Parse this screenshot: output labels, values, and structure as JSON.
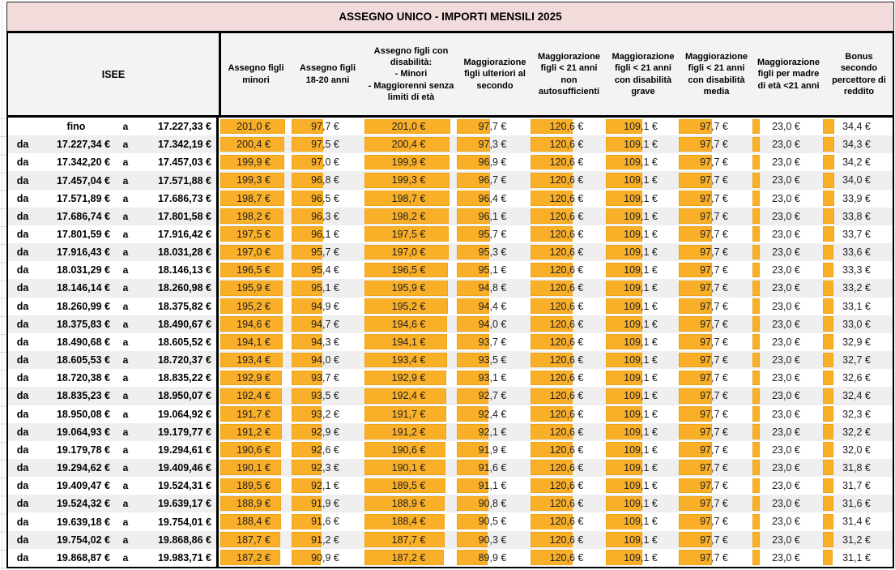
{
  "title": "ASSEGNO UNICO - IMPORTI MENSILI 2025",
  "colors": {
    "data_bar": "#FAAF28",
    "data_bar_border": "#EFA413",
    "title_bg": "#F2DCDB",
    "header_bg": "#F3F3F3",
    "row_band_bg": "#EFEFEF",
    "border": "#000000"
  },
  "table": {
    "isee_header": "ISEE",
    "range_prefix": "da",
    "range_separator": "a",
    "first_row_label": "fino",
    "currency_suffix": " €",
    "bar_max": 201.0,
    "columns": [
      "Assegno figli minori",
      "Assegno figli 18-20 anni",
      "Assegno figli con disabilità:\n- Minori\n- Maggiorenni senza limiti di età",
      "Maggiorazione figli ulteriori al secondo",
      "Maggiorazione figli < 21 anni non autosufficienti",
      "Maggiorazione figli < 21 anni con disabilità grave",
      "Maggiorazione figli < 21 anni con disabilità media",
      "Maggiorazione figli per madre di età <21 anni",
      "Bonus secondo percettore di reddito"
    ],
    "rows": [
      [
        null,
        "17.227,33",
        [
          "201,0",
          "97,7",
          "201,0",
          "97,7",
          "120,6",
          "109,1",
          "97,7",
          "23,0",
          "34,4"
        ]
      ],
      [
        "17.227,34",
        "17.342,19",
        [
          "200,4",
          "97,5",
          "200,4",
          "97,3",
          "120,6",
          "109,1",
          "97,7",
          "23,0",
          "34,3"
        ]
      ],
      [
        "17.342,20",
        "17.457,03",
        [
          "199,9",
          "97,0",
          "199,9",
          "96,9",
          "120,6",
          "109,1",
          "97,7",
          "23,0",
          "34,2"
        ]
      ],
      [
        "17.457,04",
        "17.571,88",
        [
          "199,3",
          "96,8",
          "199,3",
          "96,7",
          "120,6",
          "109,1",
          "97,7",
          "23,0",
          "34,0"
        ]
      ],
      [
        "17.571,89",
        "17.686,73",
        [
          "198,7",
          "96,5",
          "198,7",
          "96,4",
          "120,6",
          "109,1",
          "97,7",
          "23,0",
          "33,9"
        ]
      ],
      [
        "17.686,74",
        "17.801,58",
        [
          "198,2",
          "96,3",
          "198,2",
          "96,1",
          "120,6",
          "109,1",
          "97,7",
          "23,0",
          "33,8"
        ]
      ],
      [
        "17.801,59",
        "17.916,42",
        [
          "197,5",
          "96,1",
          "197,5",
          "95,7",
          "120,6",
          "109,1",
          "97,7",
          "23,0",
          "33,7"
        ]
      ],
      [
        "17.916,43",
        "18.031,28",
        [
          "197,0",
          "95,7",
          "197,0",
          "95,3",
          "120,6",
          "109,1",
          "97,7",
          "23,0",
          "33,6"
        ]
      ],
      [
        "18.031,29",
        "18.146,13",
        [
          "196,5",
          "95,4",
          "196,5",
          "95,1",
          "120,6",
          "109,1",
          "97,7",
          "23,0",
          "33,3"
        ]
      ],
      [
        "18.146,14",
        "18.260,98",
        [
          "195,9",
          "95,1",
          "195,9",
          "94,8",
          "120,6",
          "109,1",
          "97,7",
          "23,0",
          "33,2"
        ]
      ],
      [
        "18.260,99",
        "18.375,82",
        [
          "195,2",
          "94,9",
          "195,2",
          "94,4",
          "120,6",
          "109,1",
          "97,7",
          "23,0",
          "33,1"
        ]
      ],
      [
        "18.375,83",
        "18.490,67",
        [
          "194,6",
          "94,7",
          "194,6",
          "94,0",
          "120,6",
          "109,1",
          "97,7",
          "23,0",
          "33,0"
        ]
      ],
      [
        "18.490,68",
        "18.605,52",
        [
          "194,1",
          "94,3",
          "194,1",
          "93,7",
          "120,6",
          "109,1",
          "97,7",
          "23,0",
          "32,9"
        ]
      ],
      [
        "18.605,53",
        "18.720,37",
        [
          "193,4",
          "94,0",
          "193,4",
          "93,5",
          "120,6",
          "109,1",
          "97,7",
          "23,0",
          "32,7"
        ]
      ],
      [
        "18.720,38",
        "18.835,22",
        [
          "192,9",
          "93,7",
          "192,9",
          "93,1",
          "120,6",
          "109,1",
          "97,7",
          "23,0",
          "32,6"
        ]
      ],
      [
        "18.835,23",
        "18.950,07",
        [
          "192,4",
          "93,5",
          "192,4",
          "92,7",
          "120,6",
          "109,1",
          "97,7",
          "23,0",
          "32,4"
        ]
      ],
      [
        "18.950,08",
        "19.064,92",
        [
          "191,7",
          "93,2",
          "191,7",
          "92,4",
          "120,6",
          "109,1",
          "97,7",
          "23,0",
          "32,3"
        ]
      ],
      [
        "19.064,93",
        "19.179,77",
        [
          "191,2",
          "92,9",
          "191,2",
          "92,1",
          "120,6",
          "109,1",
          "97,7",
          "23,0",
          "32,2"
        ]
      ],
      [
        "19.179,78",
        "19.294,61",
        [
          "190,6",
          "92,6",
          "190,6",
          "91,9",
          "120,6",
          "109,1",
          "97,7",
          "23,0",
          "32,0"
        ]
      ],
      [
        "19.294,62",
        "19.409,46",
        [
          "190,1",
          "92,3",
          "190,1",
          "91,6",
          "120,6",
          "109,1",
          "97,7",
          "23,0",
          "31,8"
        ]
      ],
      [
        "19.409,47",
        "19.524,31",
        [
          "189,5",
          "92,1",
          "189,5",
          "91,1",
          "120,6",
          "109,1",
          "97,7",
          "23,0",
          "31,7"
        ]
      ],
      [
        "19.524,32",
        "19.639,17",
        [
          "188,9",
          "91,9",
          "188,9",
          "90,8",
          "120,6",
          "109,1",
          "97,7",
          "23,0",
          "31,6"
        ]
      ],
      [
        "19.639,18",
        "19.754,01",
        [
          "188,4",
          "91,6",
          "188,4",
          "90,5",
          "120,6",
          "109,1",
          "97,7",
          "23,0",
          "31,4"
        ]
      ],
      [
        "19.754,02",
        "19.868,86",
        [
          "187,7",
          "91,2",
          "187,7",
          "90,3",
          "120,6",
          "109,1",
          "97,7",
          "23,0",
          "31,2"
        ]
      ],
      [
        "19.868,87",
        "19.983,71",
        [
          "187,2",
          "90,9",
          "187,2",
          "89,9",
          "120,6",
          "109,1",
          "97,7",
          "23,0",
          "31,1"
        ]
      ]
    ]
  }
}
